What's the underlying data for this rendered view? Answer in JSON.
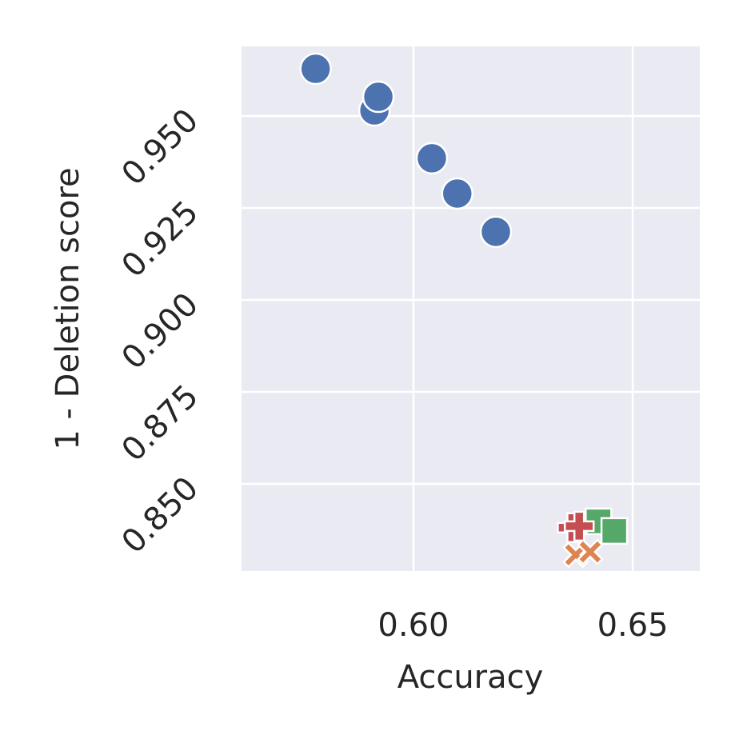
{
  "chart_data": {
    "type": "scatter",
    "x_label": "Accuracy",
    "y_label": "1 - Deletion score",
    "xlim": [
      0.5608,
      0.6653
    ],
    "ylim": [
      0.8263,
      0.9689
    ],
    "xticks": [
      {
        "value": 0.6,
        "label": "0.60"
      },
      {
        "value": 0.65,
        "label": "0.65"
      }
    ],
    "yticks": [
      {
        "value": 0.85,
        "label": "0.850"
      },
      {
        "value": 0.875,
        "label": "0.875"
      },
      {
        "value": 0.9,
        "label": "0.900"
      },
      {
        "value": 0.925,
        "label": "0.925"
      },
      {
        "value": 0.95,
        "label": "0.950"
      }
    ],
    "grid": true,
    "series": [
      {
        "color": "#4c72b0",
        "marker": "circle",
        "x": [
          0.5777,
          0.5911,
          0.592,
          0.6042,
          0.61,
          0.6188
        ],
        "values": [
          0.9628,
          0.9515,
          0.9552,
          0.9385,
          0.9289,
          0.9185
        ]
      },
      {
        "color": "#dd8452",
        "marker": "x",
        "x": [
          0.637,
          0.6403
        ],
        "values": [
          0.8307,
          0.8315
        ]
      },
      {
        "color": "#55a868",
        "marker": "square",
        "x": [
          0.6422,
          0.6458
        ],
        "values": [
          0.8398,
          0.8372
        ]
      },
      {
        "color": "#c44e52",
        "marker": "plus",
        "x": [
          0.6362,
          0.6378
        ],
        "values": [
          0.8381,
          0.8385
        ]
      }
    ]
  }
}
